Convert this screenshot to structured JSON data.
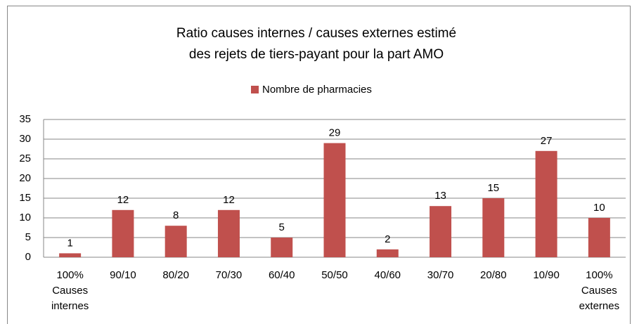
{
  "chart_data": {
    "type": "bar",
    "title": "Ratio causes internes / causes externes estimé\ndes rejets de tiers-payant pour la part AMO",
    "categories": [
      "100% Causes internes",
      "90/10",
      "80/20",
      "70/30",
      "60/40",
      "50/50",
      "40/60",
      "30/70",
      "20/80",
      "10/90",
      "100% Causes externes"
    ],
    "series": [
      {
        "name": "Nombre de pharmacies",
        "color": "#c0504d",
        "values": [
          1,
          12,
          8,
          12,
          5,
          29,
          2,
          13,
          15,
          27,
          10
        ]
      }
    ],
    "ylim": [
      0,
      35
    ],
    "yticks": [
      0,
      5,
      10,
      15,
      20,
      25,
      30,
      35
    ],
    "grid": true,
    "legend": "top"
  }
}
